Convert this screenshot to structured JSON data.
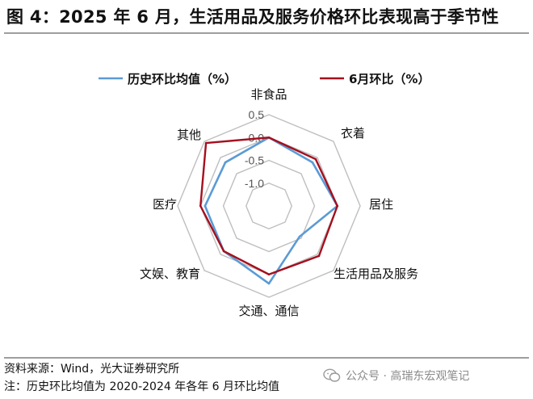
{
  "header": {
    "title": "图 4：2025 年 6 月，生活用品及服务价格环比表现高于季节性"
  },
  "chart_data": {
    "type": "radar",
    "categories": [
      "非食品",
      "衣着",
      "居住",
      "生活用品及服务",
      "交通、通信",
      "文娱、教育",
      "医疗",
      "其他"
    ],
    "rticks": [
      "0.5",
      "0.0",
      "-0.5",
      "-1.0"
    ],
    "rlim": [
      -1.5,
      0.5
    ],
    "grid": true,
    "legend_position": "top",
    "series": [
      {
        "name": "历史环比均值（%）",
        "color": "#5b9bd5",
        "values": [
          0.0,
          -0.15,
          0.0,
          -0.55,
          0.2,
          -0.1,
          -0.1,
          -0.15
        ]
      },
      {
        "name": "6月环比（%）",
        "color": "#a50f1e",
        "values": [
          0.0,
          -0.05,
          0.0,
          0.05,
          0.0,
          -0.1,
          0.0,
          0.45
        ]
      }
    ]
  },
  "footer": {
    "source": "资料来源：Wind，光大证券研究所",
    "note": "注：历史环比均值为 2020-2024 年各年 6 月环比均值"
  },
  "watermark": {
    "icon": "wechat-icon",
    "text": "公众号 · 高瑞东宏观笔记"
  }
}
